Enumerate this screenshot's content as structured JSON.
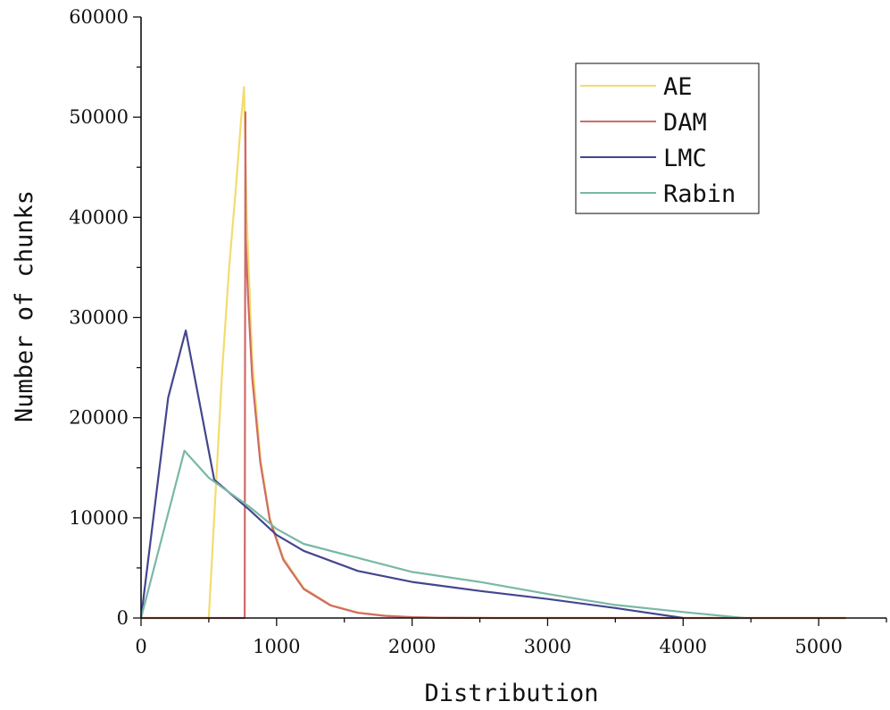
{
  "chart_data": {
    "type": "line",
    "title": "",
    "xlabel": "Distribution",
    "ylabel": "Number of chunks",
    "xlim": [
      0,
      5500
    ],
    "ylim": [
      0,
      60000
    ],
    "xticks": [
      "0",
      "1000",
      "2000",
      "3000",
      "4000",
      "5000"
    ],
    "yticks": [
      "0",
      "10000",
      "20000",
      "30000",
      "40000",
      "50000",
      "60000"
    ],
    "legend_position": "top-right",
    "grid": false,
    "series": [
      {
        "name": "AE",
        "color": "#f3dc6e",
        "points": [
          [
            0,
            0
          ],
          [
            500,
            0
          ],
          [
            520,
            5000
          ],
          [
            560,
            15000
          ],
          [
            600,
            25000
          ],
          [
            650,
            35000
          ],
          [
            700,
            43000
          ],
          [
            740,
            50000
          ],
          [
            760,
            53000
          ],
          [
            780,
            40000
          ],
          [
            820,
            26000
          ],
          [
            880,
            16000
          ],
          [
            950,
            10000
          ],
          [
            1050,
            6000
          ],
          [
            1200,
            3000
          ],
          [
            1400,
            1300
          ],
          [
            1600,
            550
          ],
          [
            1800,
            230
          ],
          [
            2000,
            90
          ],
          [
            2200,
            30
          ],
          [
            2600,
            0
          ],
          [
            5200,
            0
          ]
        ]
      },
      {
        "name": "DAM",
        "color": "#cf6a6a",
        "points": [
          [
            0,
            0
          ],
          [
            765,
            0
          ],
          [
            770,
            50500
          ],
          [
            772,
            38000
          ],
          [
            790,
            32000
          ],
          [
            820,
            24000
          ],
          [
            880,
            15500
          ],
          [
            950,
            9800
          ],
          [
            1050,
            5800
          ],
          [
            1200,
            2900
          ],
          [
            1400,
            1250
          ],
          [
            1600,
            520
          ],
          [
            1800,
            210
          ],
          [
            2000,
            80
          ],
          [
            2200,
            30
          ],
          [
            2600,
            0
          ],
          [
            5200,
            0
          ]
        ]
      },
      {
        "name": "LMC",
        "color": "#44468e",
        "points": [
          [
            0,
            0
          ],
          [
            200,
            22000
          ],
          [
            330,
            28700
          ],
          [
            540,
            13800
          ],
          [
            800,
            10800
          ],
          [
            1000,
            8300
          ],
          [
            1200,
            6700
          ],
          [
            1600,
            4700
          ],
          [
            2000,
            3600
          ],
          [
            2500,
            2700
          ],
          [
            3000,
            1900
          ],
          [
            3500,
            1000
          ],
          [
            4000,
            0
          ]
        ]
      },
      {
        "name": "Rabin",
        "color": "#79b8a6",
        "points": [
          [
            0,
            0
          ],
          [
            320,
            16700
          ],
          [
            500,
            14000
          ],
          [
            800,
            11100
          ],
          [
            1000,
            8900
          ],
          [
            1200,
            7400
          ],
          [
            1600,
            6000
          ],
          [
            2000,
            4600
          ],
          [
            2500,
            3600
          ],
          [
            3000,
            2400
          ],
          [
            3500,
            1300
          ],
          [
            4000,
            600
          ],
          [
            4450,
            0
          ]
        ]
      }
    ]
  }
}
